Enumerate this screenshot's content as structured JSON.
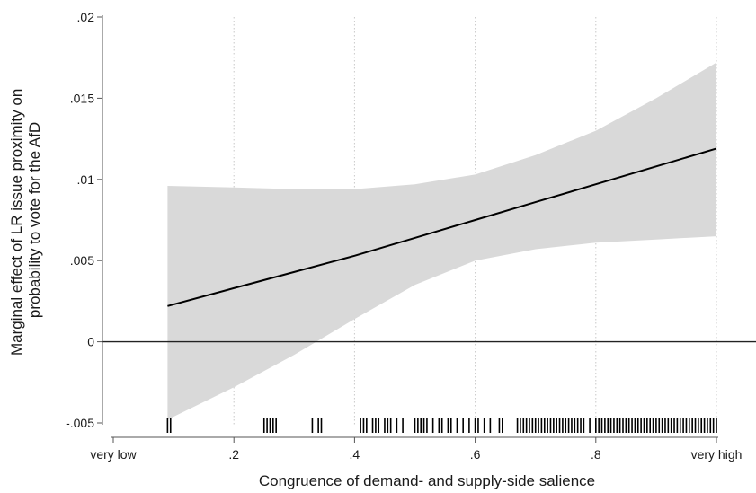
{
  "chart_data": {
    "type": "line",
    "title": "",
    "xlabel": "Congruence of demand- and supply-side salience",
    "ylabel_lines": [
      "Marginal effect of LR issue proximity on",
      "probability to vote for the AfD"
    ],
    "xlim": [
      0,
      1
    ],
    "ylim": [
      -0.005,
      0.02
    ],
    "x_ticks": [
      {
        "value": 0,
        "label": "very low"
      },
      {
        "value": 0.2,
        "label": ".2"
      },
      {
        "value": 0.4,
        "label": ".4"
      },
      {
        "value": 0.6,
        "label": ".6"
      },
      {
        "value": 0.8,
        "label": ".8"
      },
      {
        "value": 1,
        "label": "very high"
      }
    ],
    "y_ticks": [
      {
        "value": -0.005,
        "label": "-.005"
      },
      {
        "value": 0,
        "label": "0"
      },
      {
        "value": 0.005,
        "label": ".005"
      },
      {
        "value": 0.01,
        "label": ".01"
      },
      {
        "value": 0.015,
        "label": ".015"
      },
      {
        "value": 0.02,
        "label": ".02"
      }
    ],
    "grid": "vertical dotted",
    "reference_line_y": 0,
    "series": [
      {
        "kind": "line",
        "x": [
          0.09,
          0.2,
          0.3,
          0.4,
          0.5,
          0.6,
          0.7,
          0.8,
          0.9,
          1.0
        ],
        "y": [
          0.0022,
          0.0033,
          0.0043,
          0.0053,
          0.0064,
          0.0075,
          0.0086,
          0.0097,
          0.0108,
          0.0119
        ]
      },
      {
        "kind": "confidence_band",
        "x": [
          0.09,
          0.2,
          0.3,
          0.4,
          0.5,
          0.6,
          0.7,
          0.8,
          0.9,
          1.0
        ],
        "lower": [
          -0.0048,
          -0.0028,
          -0.0008,
          0.0014,
          0.0035,
          0.005,
          0.0057,
          0.0061,
          0.0063,
          0.0065
        ],
        "upper": [
          0.0096,
          0.0095,
          0.0094,
          0.0094,
          0.0097,
          0.0103,
          0.0115,
          0.013,
          0.015,
          0.0172
        ]
      }
    ],
    "rug": [
      0.09,
      0.095,
      0.25,
      0.255,
      0.26,
      0.265,
      0.27,
      0.33,
      0.34,
      0.345,
      0.41,
      0.415,
      0.42,
      0.43,
      0.435,
      0.44,
      0.45,
      0.455,
      0.46,
      0.47,
      0.48,
      0.5,
      0.505,
      0.51,
      0.515,
      0.52,
      0.53,
      0.54,
      0.545,
      0.555,
      0.56,
      0.57,
      0.58,
      0.59,
      0.6,
      0.605,
      0.615,
      0.625,
      0.64,
      0.645,
      0.67,
      0.675,
      0.68,
      0.685,
      0.69,
      0.695,
      0.7,
      0.705,
      0.71,
      0.715,
      0.72,
      0.725,
      0.73,
      0.735,
      0.74,
      0.745,
      0.75,
      0.755,
      0.76,
      0.765,
      0.77,
      0.775,
      0.78,
      0.79,
      0.8,
      0.805,
      0.81,
      0.815,
      0.82,
      0.825,
      0.83,
      0.835,
      0.84,
      0.845,
      0.85,
      0.855,
      0.86,
      0.865,
      0.87,
      0.875,
      0.88,
      0.885,
      0.89,
      0.895,
      0.9,
      0.905,
      0.91,
      0.915,
      0.92,
      0.925,
      0.93,
      0.935,
      0.94,
      0.945,
      0.95,
      0.955,
      0.96,
      0.965,
      0.97,
      0.975,
      0.98,
      0.985,
      0.99,
      0.995,
      1.0
    ],
    "colors": {
      "band": "#d9d9d9",
      "line": "#000000",
      "axis": "#555555",
      "grid": "#c8c8c8",
      "rug": "#000000",
      "text": "#1a1a1a"
    }
  }
}
